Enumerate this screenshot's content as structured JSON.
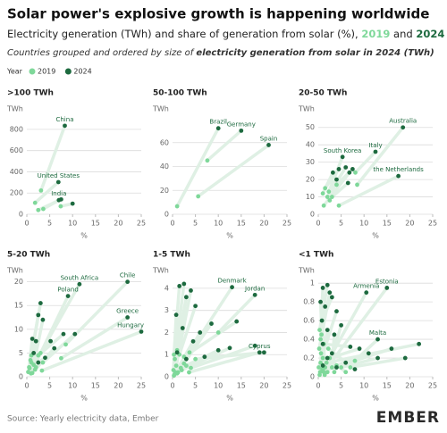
{
  "title": "Solar power's explosive growth is happening worldwide",
  "subtitle": {
    "text": "Electricity generation (TWh) and share of generation from solar (%),",
    "and": "and"
  },
  "caption": {
    "text": "Countries grouped and ordered by size of",
    "emphasis": "electricity generation from solar in 2024 (TWh)"
  },
  "legend": {
    "title": "Year",
    "items": [
      {
        "name": "2019",
        "color": "#7fd89a"
      },
      {
        "name": "2024",
        "color": "#1d6a3f"
      }
    ]
  },
  "source": "Source: Yearly electricity data, Ember",
  "logo": "EMBER",
  "chart_data": [
    {
      "type": "scatter",
      "title": ">100 TWh",
      "ylabel": "TWh",
      "xlabel": "%",
      "xlim": [
        0,
        25
      ],
      "ylim": [
        0,
        900
      ],
      "xticks": [
        0,
        5,
        10,
        15,
        20,
        25
      ],
      "yticks": [
        0,
        200,
        400,
        600,
        800
      ],
      "grid": true,
      "series": [
        {
          "x": [
            3.1,
            1.8,
            3.6,
            7.4,
            2.5
          ],
          "values": [
            224,
            108,
            50,
            75,
            40
          ]
        },
        {
          "x": [
            8.3,
            6.9,
            7,
            10,
            7.5
          ],
          "values": [
            834,
            303,
            133,
            100,
            140
          ],
          "labels": [
            "China",
            "United States",
            "India",
            null,
            null
          ]
        }
      ]
    },
    {
      "type": "scatter",
      "title": "50-100 TWh",
      "ylabel": "TWh",
      "xlabel": "%",
      "xlim": [
        0,
        25
      ],
      "ylim": [
        0,
        80
      ],
      "xticks": [
        0,
        5,
        10,
        15,
        20,
        25
      ],
      "yticks": [
        0,
        20,
        40,
        60
      ],
      "grid": true,
      "series": [
        {
          "x": [
            1,
            7.6,
            5.6
          ],
          "values": [
            6.7,
            45,
            15
          ]
        },
        {
          "x": [
            10,
            15,
            21
          ],
          "values": [
            72,
            70,
            58
          ],
          "labels": [
            "Brazil",
            "Germany",
            "Spain"
          ]
        }
      ]
    },
    {
      "type": "scatter",
      "title": "20-50 TWh",
      "ylabel": "TWh",
      "xlabel": "%",
      "xlim": [
        0,
        25
      ],
      "ylim": [
        0,
        55
      ],
      "xticks": [
        0,
        5,
        10,
        15,
        20,
        25
      ],
      "yticks": [
        0,
        10,
        20,
        30,
        40,
        50
      ],
      "grid": true,
      "series": [
        {
          "x": [
            8.5,
            2.3,
            8.1,
            4.5,
            1,
            1.5,
            2,
            4,
            1.2,
            2.5,
            3
          ],
          "values": [
            17,
            13,
            24,
            5,
            12,
            15,
            10,
            17,
            5,
            8,
            10
          ]
        },
        {
          "x": [
            18.5,
            5.3,
            12.5,
            17.5,
            3.2,
            4.5,
            6,
            7.5,
            6.8,
            4,
            6.5
          ],
          "values": [
            50,
            33,
            36,
            22,
            24,
            26,
            27,
            26,
            24,
            20,
            18
          ],
          "labels": [
            "Australia",
            "South Korea",
            "Italy",
            "the Netherlands",
            null,
            null,
            null,
            null,
            null,
            null,
            null
          ]
        }
      ]
    },
    {
      "type": "scatter",
      "title": "5-20 TWh",
      "ylabel": "TWh",
      "xlabel": "%",
      "xlim": [
        0,
        25
      ],
      "ylim": [
        0,
        20.5
      ],
      "xticks": [
        0,
        5,
        10,
        15,
        20,
        25
      ],
      "yticks": [
        0,
        5,
        10,
        15,
        20
      ],
      "grid": true,
      "series": [
        {
          "x": [
            3,
            0.9,
            8.5,
            7.5,
            3.3,
            0.5,
            0.3,
            1,
            0.8,
            1.5,
            2.5,
            3.5,
            1.8,
            0.6,
            1.2,
            2,
            1
          ],
          "values": [
            5,
            0.7,
            6.8,
            3.9,
            1.3,
            2,
            1,
            4.5,
            3.5,
            2.5,
            4.5,
            3,
            1.5,
            1.8,
            0.8,
            2,
            3
          ]
        },
        {
          "x": [
            11.5,
            9,
            22,
            22,
            25,
            1.2,
            2,
            3,
            2.5,
            3.5,
            8,
            10.5,
            6,
            4,
            1.5,
            2.5,
            5.2
          ],
          "values": [
            19.5,
            17,
            20,
            12.5,
            9.5,
            8,
            7.5,
            15.5,
            13,
            12,
            9,
            9,
            6,
            4,
            5,
            3,
            7.5
          ],
          "labels": [
            "South Africa",
            "Poland",
            "Chile",
            "Greece",
            "Hungary",
            null,
            null,
            null,
            null,
            null,
            null,
            null,
            null,
            null,
            null,
            null,
            null
          ]
        }
      ]
    },
    {
      "type": "scatter",
      "title": "1-5 TWh",
      "ylabel": "TWh",
      "xlabel": "%",
      "xlim": [
        0,
        25
      ],
      "ylim": [
        0,
        4.4
      ],
      "xticks": [
        0,
        5,
        10,
        15,
        20,
        25
      ],
      "yticks": [
        0,
        1,
        2,
        3,
        4
      ],
      "grid": true,
      "series": [
        {
          "x": [
            3.7,
            10,
            3.6,
            0.3,
            0.5,
            1,
            0.8,
            1.5,
            0.2,
            0.6,
            1,
            2.5,
            3,
            2,
            4,
            5,
            0.4,
            0.3,
            1.2,
            1.8,
            2.5
          ],
          "values": [
            1.1,
            2,
            0.2,
            1,
            0.8,
            1.2,
            0.5,
            1,
            0.3,
            0.2,
            0.15,
            0.6,
            0.5,
            0.3,
            0.4,
            0.8,
            0.1,
            0.05,
            0.2,
            0.4,
            0.9
          ]
        },
        {
          "x": [
            13,
            18,
            19,
            1.5,
            2.5,
            3,
            4,
            5,
            0.8,
            2.2,
            6,
            8.5,
            10,
            12.5,
            18,
            20,
            4.5,
            1,
            3,
            7,
            14
          ],
          "values": [
            4.05,
            3.7,
            1.1,
            4.1,
            4.2,
            3.6,
            3.9,
            3.2,
            2.8,
            2.2,
            2,
            2.4,
            1.2,
            1.3,
            1.4,
            1.1,
            1.6,
            1.1,
            0.8,
            0.9,
            2.5
          ],
          "labels": [
            "Denmark",
            "Jordan",
            "Cyprus",
            null,
            null,
            null,
            null,
            null,
            null,
            null,
            null,
            null,
            null,
            null,
            null,
            null,
            null,
            null,
            null,
            null,
            null
          ]
        }
      ]
    },
    {
      "type": "scatter",
      "title": "<1 TWh",
      "ylabel": "TWh",
      "xlabel": "%",
      "xlim": [
        0,
        25
      ],
      "ylim": [
        0,
        1.04
      ],
      "xticks": [
        0,
        5,
        10,
        15,
        20,
        25
      ],
      "yticks": [
        0,
        0.2,
        0.4,
        0.6,
        0.8,
        1
      ],
      "grid": true,
      "series": [
        {
          "x": [
            1,
            1.2,
            8,
            0.3,
            0.5,
            0.2,
            0.8,
            1,
            0.5,
            0.1,
            1.5,
            2,
            0.3,
            3,
            0.6,
            1.2,
            2.5,
            4,
            5,
            0.4,
            1.8,
            0.9,
            3.5,
            6,
            2.2,
            0.7,
            1.4,
            7
          ],
          "values": [
            0.07,
            0.05,
            0.17,
            0.5,
            0.4,
            0.3,
            0.6,
            0.2,
            0.15,
            0.1,
            0.1,
            0.05,
            0.02,
            0.1,
            0.25,
            0.35,
            0.2,
            0.12,
            0.1,
            0.05,
            0.15,
            0.08,
            0.05,
            0.05,
            0.3,
            0.45,
            0.02,
            0.1
          ]
        },
        {
          "x": [
            10.5,
            15,
            13,
            2,
            1,
            2.5,
            3,
            0.5,
            1.5,
            4,
            0.8,
            5,
            2,
            3.5,
            1,
            7,
            9,
            11,
            13,
            16,
            22,
            6,
            4,
            2,
            8,
            1,
            3,
            19
          ],
          "values": [
            0.9,
            0.95,
            0.4,
            0.98,
            0.95,
            0.9,
            0.85,
            0.8,
            0.75,
            0.7,
            0.6,
            0.55,
            0.5,
            0.45,
            0.35,
            0.32,
            0.3,
            0.25,
            0.2,
            0.3,
            0.35,
            0.15,
            0.1,
            0.2,
            0.08,
            0.12,
            0.25,
            0.2
          ],
          "labels": [
            "Armenia",
            "Estonia",
            "Malta",
            null,
            null,
            null,
            null,
            null,
            null,
            null,
            null,
            null,
            null,
            null,
            null,
            null,
            null,
            null,
            null,
            null,
            null,
            null,
            null,
            null,
            null,
            null,
            null,
            null
          ]
        }
      ]
    }
  ]
}
